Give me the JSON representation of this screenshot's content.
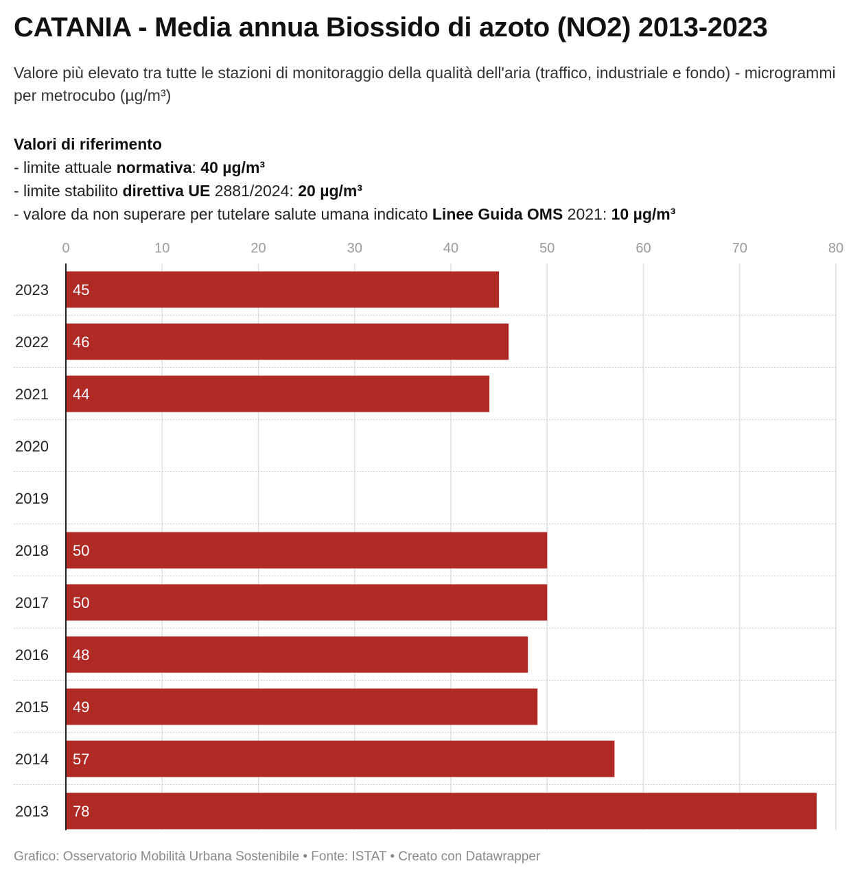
{
  "header": {
    "title": "CATANIA - Media annua Biossido di azoto (NO2) 2013-2023",
    "subtitle": "Valore più elevato tra tutte le stazioni di monitoraggio della qualità dell'aria (traffico, industriale e fondo) - microgrammi per metrocubo (µg/m³)"
  },
  "notes": {
    "heading": "Valori di riferimento",
    "line1": {
      "prefix": "- limite attuale ",
      "bold1": "normativa",
      "mid": ": ",
      "bold2": "40 µg/m³"
    },
    "line2": {
      "prefix": "- limite stabilito ",
      "bold1": "direttiva UE",
      "mid": " 2881/2024: ",
      "bold2": "20 µg/m³"
    },
    "line3": {
      "prefix": "- valore da non superare per tutelare salute umana indicato ",
      "bold1": "Linee Guida OMS",
      "mid": " 2021: ",
      "bold2": "10 µg/m³"
    }
  },
  "chart_data": {
    "type": "bar",
    "orientation": "horizontal",
    "categories": [
      "2023",
      "2022",
      "2021",
      "2020",
      "2019",
      "2018",
      "2017",
      "2016",
      "2015",
      "2014",
      "2013"
    ],
    "values": [
      45,
      46,
      44,
      null,
      null,
      50,
      50,
      48,
      49,
      57,
      78
    ],
    "data_labels": [
      "45",
      "46",
      "44",
      "",
      "",
      "50",
      "50",
      "48",
      "49",
      "57",
      "78"
    ],
    "xlim": [
      0,
      80
    ],
    "xticks": [
      0,
      10,
      20,
      30,
      40,
      50,
      60,
      70,
      80
    ],
    "xtick_labels": [
      "0",
      "10",
      "20",
      "30",
      "40",
      "50",
      "60",
      "70",
      "80"
    ],
    "axis_position": "top",
    "grid": true,
    "bar_color": "#b02a25"
  },
  "footer": {
    "credit": "Grafico: Osservatorio Mobilità Urbana Sostenibile • Fonte: ISTAT • Creato con Datawrapper"
  }
}
